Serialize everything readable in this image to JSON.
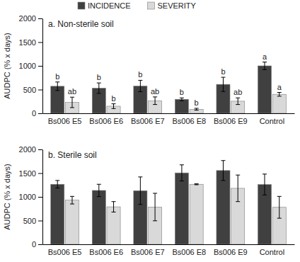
{
  "chart_data": [
    {
      "type": "bar",
      "title": "a. Non-sterile soil",
      "y_label": "AUDPC (% x days)",
      "categories": [
        "Bs006 E5",
        "Bs006 E6",
        "Bs006 E7",
        "Bs006 E8",
        "Bs006 E9",
        "Control"
      ],
      "series": [
        {
          "name": "INCIDENCE",
          "color": "#404040",
          "values": [
            570,
            530,
            575,
            295,
            610,
            1000
          ],
          "error": [
            90,
            110,
            120,
            30,
            150,
            80
          ],
          "annotations": [
            "b",
            "b",
            "b",
            "b",
            "b",
            "a"
          ]
        },
        {
          "name": "SEVERITY",
          "color": "#d9d9d9",
          "values": [
            230,
            150,
            265,
            85,
            255,
            400
          ],
          "error": [
            110,
            50,
            80,
            20,
            70,
            40
          ],
          "annotations": [
            "ab",
            "b",
            "ab",
            "b",
            "ab",
            "a"
          ]
        }
      ],
      "ylim": [
        0,
        2000
      ],
      "yticks": [
        0,
        500,
        1000,
        1500,
        2000
      ],
      "legend": "top"
    },
    {
      "type": "bar",
      "title": "b. Sterile soil",
      "y_label": "AUDPC (% x days)",
      "categories": [
        "Bs006 E5",
        "Bs006 E6",
        "Bs006 E7",
        "Bs006 E8",
        "Bs006 E9",
        "Control"
      ],
      "series": [
        {
          "name": "INCIDENCE",
          "color": "#404040",
          "values": [
            1265,
            1135,
            1130,
            1505,
            1555,
            1260
          ],
          "error": [
            80,
            130,
            290,
            170,
            210,
            220
          ]
        },
        {
          "name": "SEVERITY",
          "color": "#d9d9d9",
          "values": [
            930,
            790,
            785,
            1265,
            1180,
            780
          ],
          "error": [
            80,
            110,
            290,
            10,
            280,
            230
          ]
        }
      ],
      "ylim": [
        0,
        2000
      ],
      "yticks": [
        0,
        500,
        1000,
        1500,
        2000
      ]
    }
  ]
}
